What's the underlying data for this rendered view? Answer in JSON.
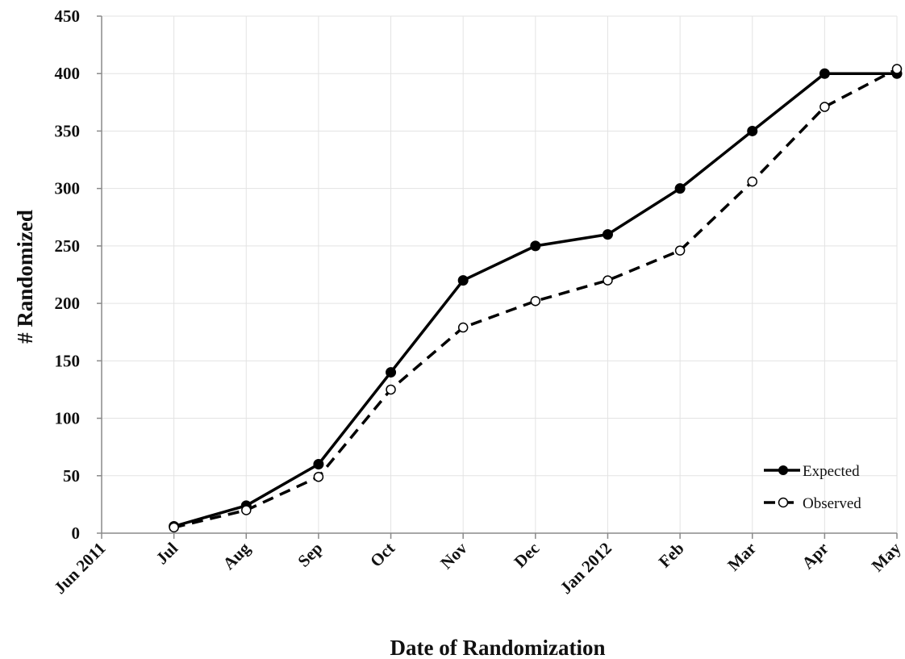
{
  "chart_data": {
    "type": "line",
    "title": "",
    "xlabel": "Date of Randomization",
    "ylabel": "# Randomized",
    "categories": [
      "Jun 2011",
      "Jul",
      "Aug",
      "Sep",
      "Oct",
      "Nov",
      "Dec",
      "Jan 2012",
      "Feb",
      "Mar",
      "Apr",
      "May"
    ],
    "ylim": [
      0,
      450
    ],
    "yticks": [
      0,
      50,
      100,
      150,
      200,
      250,
      300,
      350,
      400,
      450
    ],
    "grid": true,
    "legend_position": "bottom-right",
    "series": [
      {
        "name": "Expected",
        "style": "solid",
        "marker": "filled-circle",
        "color": "#000000",
        "x": [
          "Jul",
          "Aug",
          "Sep",
          "Oct",
          "Nov",
          "Dec",
          "Jan 2012",
          "Feb",
          "Mar",
          "Apr",
          "May"
        ],
        "values": [
          6,
          24,
          60,
          140,
          220,
          250,
          260,
          300,
          350,
          400,
          400
        ]
      },
      {
        "name": "Observed",
        "style": "dashed",
        "marker": "open-circle",
        "color": "#000000",
        "x": [
          "Jul",
          "Aug",
          "Sep",
          "Oct",
          "Nov",
          "Dec",
          "Jan 2012",
          "Feb",
          "Mar",
          "Apr",
          "May"
        ],
        "values": [
          5,
          20,
          49,
          125,
          179,
          202,
          220,
          246,
          306,
          371,
          404
        ]
      }
    ]
  }
}
